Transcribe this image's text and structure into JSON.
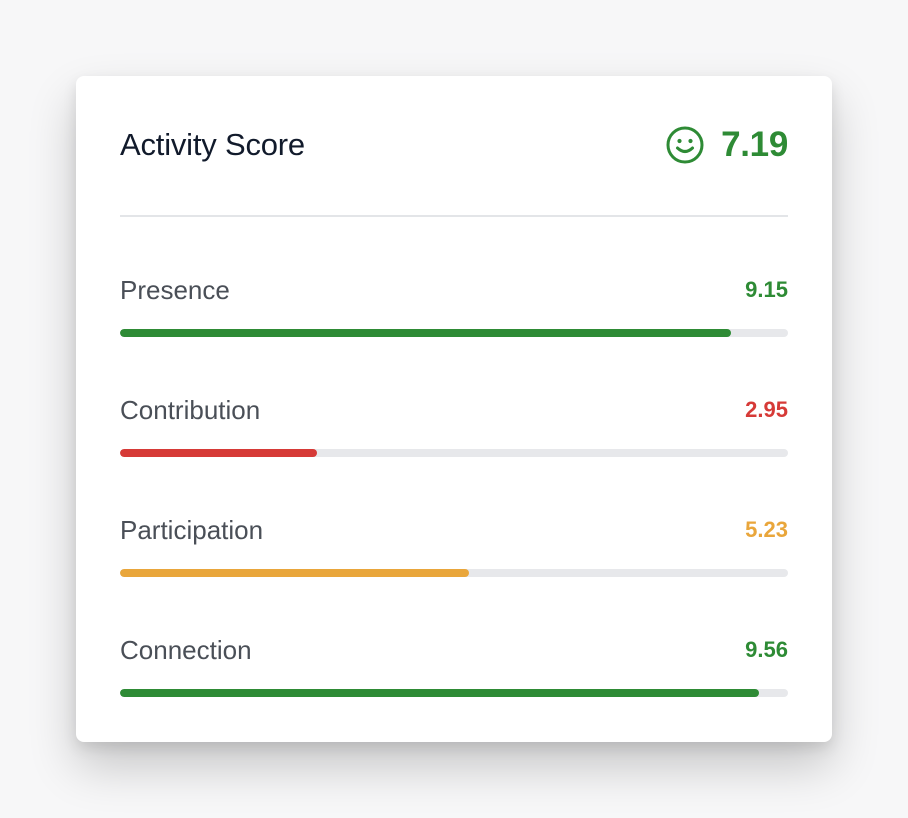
{
  "card": {
    "title": "Activity Score",
    "overall": {
      "value": "7.19",
      "icon": "smiley-face-icon",
      "color": "#2e8b35"
    }
  },
  "metrics": [
    {
      "label": "Presence",
      "value": "9.15",
      "score": 9.15,
      "max": 10,
      "color": "#2e8b35"
    },
    {
      "label": "Contribution",
      "value": "2.95",
      "score": 2.95,
      "max": 10,
      "color": "#d63a37"
    },
    {
      "label": "Participation",
      "value": "5.23",
      "score": 5.23,
      "max": 10,
      "color": "#e9a63b"
    },
    {
      "label": "Connection",
      "value": "9.56",
      "score": 9.56,
      "max": 10,
      "color": "#2e8b35"
    }
  ]
}
